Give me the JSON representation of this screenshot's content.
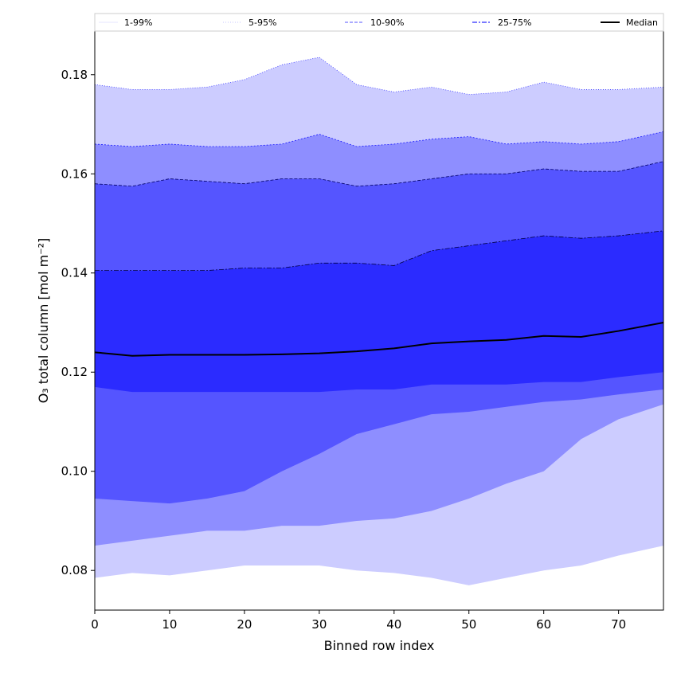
{
  "chart_data": {
    "type": "area",
    "xlabel": "Binned row index",
    "ylabel": "O₃ total column [mol m⁻²]",
    "xlim": [
      0,
      76
    ],
    "ylim": [
      0.072,
      0.1888
    ],
    "x_ticks": [
      "0",
      "10",
      "20",
      "30",
      "40",
      "50",
      "60",
      "70"
    ],
    "y_ticks": [
      "0.08",
      "0.10",
      "0.12",
      "0.14",
      "0.16",
      "0.18"
    ],
    "grid": false,
    "legend_position": "top",
    "legend": [
      {
        "label": "1-99%",
        "color": "#ccccff",
        "style": "solid"
      },
      {
        "label": "5-95%",
        "color": "#8e8eff",
        "style": "dotted"
      },
      {
        "label": "10-90%",
        "color": "#5555ff",
        "style": "dashed"
      },
      {
        "label": "25-75%",
        "color": "#2b2bff",
        "style": "dashdot"
      },
      {
        "label": "Median",
        "color": "#000000",
        "style": "solid"
      }
    ],
    "x": [
      0,
      5,
      10,
      15,
      20,
      25,
      30,
      35,
      40,
      45,
      50,
      55,
      60,
      65,
      70,
      76
    ],
    "bands": [
      {
        "name": "1-99%",
        "color": "#ccccff",
        "edge": "#3a3aff",
        "lower": [
          0.0785,
          0.0795,
          0.079,
          0.08,
          0.081,
          0.081,
          0.081,
          0.08,
          0.0795,
          0.0785,
          0.077,
          0.0785,
          0.08,
          0.081,
          0.083,
          0.085
        ],
        "upper": [
          0.178,
          0.177,
          0.177,
          0.1775,
          0.179,
          0.182,
          0.1835,
          0.178,
          0.1765,
          0.1775,
          0.176,
          0.1765,
          0.1785,
          0.177,
          0.177,
          0.1775
        ]
      },
      {
        "name": "5-95%",
        "color": "#8e8eff",
        "edge": "#1a1aff",
        "lower": [
          0.085,
          0.086,
          0.087,
          0.088,
          0.088,
          0.089,
          0.089,
          0.09,
          0.0905,
          0.092,
          0.0945,
          0.0975,
          0.1,
          0.1065,
          0.1105,
          0.1135
        ],
        "upper": [
          0.166,
          0.1655,
          0.166,
          0.1655,
          0.1655,
          0.166,
          0.168,
          0.1655,
          0.166,
          0.167,
          0.1675,
          0.166,
          0.1665,
          0.166,
          0.1665,
          0.1685
        ]
      },
      {
        "name": "10-90%",
        "color": "#5555ff",
        "edge": "#000066",
        "lower": [
          0.0945,
          0.094,
          0.0935,
          0.0945,
          0.096,
          0.1,
          0.1035,
          0.1075,
          0.1095,
          0.1115,
          0.112,
          0.113,
          0.114,
          0.1145,
          0.1155,
          0.1165
        ],
        "upper": [
          0.158,
          0.1575,
          0.159,
          0.1585,
          0.158,
          0.159,
          0.159,
          0.1575,
          0.158,
          0.159,
          0.16,
          0.16,
          0.161,
          0.1605,
          0.1605,
          0.1625
        ]
      },
      {
        "name": "25-75%",
        "color": "#2b2bff",
        "edge": "#000044",
        "lower": [
          0.117,
          0.116,
          0.116,
          0.116,
          0.116,
          0.116,
          0.116,
          0.1165,
          0.1165,
          0.1175,
          0.1175,
          0.1175,
          0.118,
          0.118,
          0.119,
          0.12
        ],
        "upper": [
          0.1405,
          0.1405,
          0.1405,
          0.1405,
          0.141,
          0.141,
          0.142,
          0.142,
          0.1415,
          0.1445,
          0.1455,
          0.1465,
          0.1475,
          0.147,
          0.1475,
          0.1485
        ]
      }
    ],
    "series": [
      {
        "name": "Median",
        "color": "#000000",
        "values": [
          0.124,
          0.1233,
          0.1235,
          0.1235,
          0.1235,
          0.1236,
          0.1238,
          0.1242,
          0.1248,
          0.1258,
          0.1262,
          0.1265,
          0.1273,
          0.1271,
          0.1283,
          0.13
        ]
      }
    ]
  }
}
